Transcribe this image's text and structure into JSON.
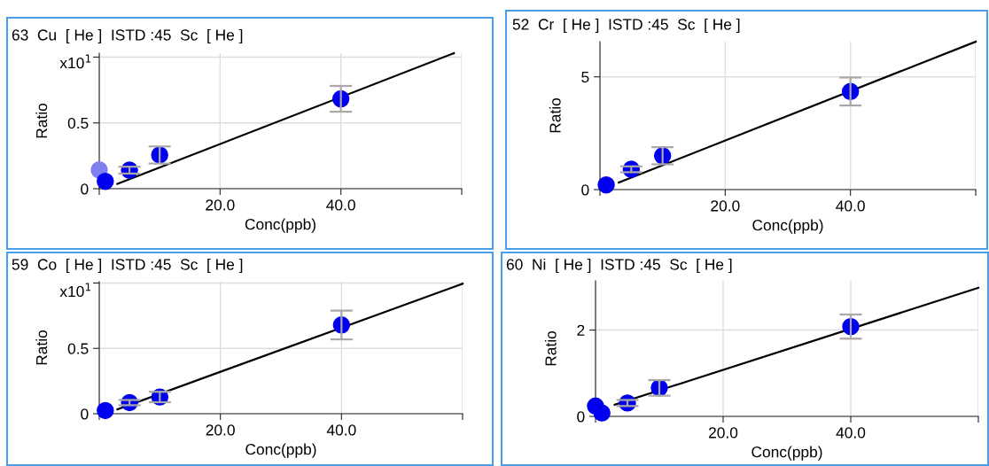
{
  "chart_data": [
    {
      "type": "scatter",
      "title": "63  Cu  [ He ]  ISTD :45  Sc  [ He ]",
      "xlabel": "Conc(ppb)",
      "ylabel": "Ratio",
      "annotations": [
        "x10$^{1}$"
      ],
      "xlim": [
        0,
        60
      ],
      "xticks": [
        {
          "value": 0,
          "label": null
        },
        {
          "value": 20,
          "label": "20.0"
        },
        {
          "value": 40,
          "label": "40.0"
        },
        {
          "value": 60,
          "label": null
        }
      ],
      "ylim": [
        0,
        1.03
      ],
      "yticks": [
        0,
        0.5,
        {
          "value": 1,
          "label": null
        }
      ],
      "grid": true,
      "series": [
        {
          "marker": "circle",
          "color": "#8080f0",
          "x": [
            0
          ],
          "values": [
            0.143
          ]
        },
        {
          "marker": "circle",
          "color": "#0000ee",
          "x": [
            1,
            5,
            10,
            40
          ],
          "values": [
            0.056,
            0.141,
            0.256,
            0.683
          ],
          "errors": [
            null,
            0.026,
            0.065,
            0.098
          ]
        },
        {
          "type": "line",
          "color": "#000000",
          "x": [
            3,
            58.7
          ],
          "values": [
            0.036,
            1.03
          ]
        }
      ]
    },
    {
      "type": "scatter",
      "title": "52  Cr  [ He ]  ISTD :45  Sc  [ He ]",
      "xlabel": "Conc(ppb)",
      "ylabel": "Ratio",
      "xlim": [
        0,
        60
      ],
      "xticks": [
        {
          "value": 0,
          "label": null
        },
        {
          "value": 20,
          "label": "20.0"
        },
        {
          "value": 40,
          "label": "40.0"
        },
        {
          "value": 60,
          "label": null
        }
      ],
      "ylim": [
        0,
        6.56
      ],
      "yticks": [
        0,
        5
      ],
      "grid": true,
      "series": [
        {
          "marker": "circle",
          "color": "#0000ee",
          "x": [
            1,
            5,
            10,
            40
          ],
          "values": [
            0.21,
            0.9,
            1.5,
            4.35
          ],
          "errors": [
            null,
            0.13,
            0.38,
            0.62
          ]
        },
        {
          "type": "line",
          "color": "#000000",
          "x": [
            3,
            60
          ],
          "values": [
            0.31,
            6.56
          ]
        }
      ]
    },
    {
      "type": "scatter",
      "title": "59  Co  [ He ]  ISTD :45  Sc  [ He ]",
      "xlabel": "Conc(ppb)",
      "ylabel": "Ratio",
      "annotations": [
        "x10$^{1}$"
      ],
      "xlim": [
        0,
        60
      ],
      "xticks": [
        {
          "value": 0,
          "label": null
        },
        {
          "value": 20,
          "label": "20.0"
        },
        {
          "value": 40,
          "label": "40.0"
        },
        {
          "value": 60,
          "label": null
        }
      ],
      "ylim": [
        0,
        1.01
      ],
      "yticks": [
        0,
        0.5,
        {
          "value": 1,
          "label": null
        }
      ],
      "grid": true,
      "series": [
        {
          "marker": "circle",
          "color": "#0000ee",
          "x": [
            1,
            5,
            10,
            40
          ],
          "values": [
            0.024,
            0.085,
            0.128,
            0.679
          ],
          "errors": [
            null,
            0.02,
            0.04,
            0.11
          ]
        },
        {
          "type": "line",
          "color": "#000000",
          "x": [
            3,
            60
          ],
          "values": [
            0.034,
            0.995
          ]
        }
      ]
    },
    {
      "type": "scatter",
      "title": "60  Ni  [ He ]  ISTD :45  Sc  [ He ]",
      "xlabel": "Conc(ppb)",
      "ylabel": "Ratio",
      "xlim": [
        0,
        60
      ],
      "xticks": [
        {
          "value": 0,
          "label": null
        },
        {
          "value": 20,
          "label": "20.0"
        },
        {
          "value": 40,
          "label": "40.0"
        },
        {
          "value": 60,
          "label": null
        }
      ],
      "ylim": [
        0,
        3.14
      ],
      "yticks": [
        0,
        2
      ],
      "grid": true,
      "series": [
        {
          "marker": "circle",
          "color": "#0000ee",
          "x": [
            0,
            1,
            5,
            10,
            40
          ],
          "values": [
            0.24,
            0.08,
            0.31,
            0.66,
            2.08
          ],
          "errors": [
            null,
            null,
            0.07,
            0.18,
            0.28
          ]
        },
        {
          "type": "line",
          "color": "#000000",
          "x": [
            3,
            60
          ],
          "values": [
            0.27,
            2.98
          ]
        }
      ]
    }
  ]
}
